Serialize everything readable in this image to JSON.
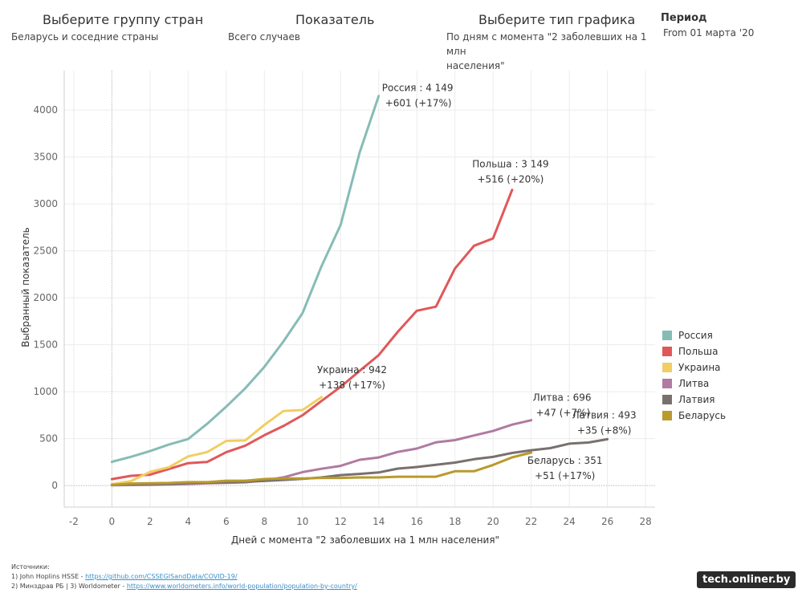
{
  "controls": {
    "group": {
      "title": "Выберите группу стран",
      "value": "Беларусь и соседние страны"
    },
    "indicator": {
      "title": "Показатель",
      "value": "Всего случаев"
    },
    "chart_type": {
      "title": "Выберите тип графика",
      "value_line1": "По дням с момента \"2 заболевших на 1 млн",
      "value_line2": "населения\""
    },
    "period": {
      "title": "Период",
      "value": "From 01 марта '20"
    }
  },
  "sources": {
    "heading": "Источники:",
    "line1_prefix": "1) John Hoplins HSSE - ",
    "line1_link": "https://github.com/CSSEGISandData/COVID-19/",
    "line2_prefix": "2) Минздрав РБ  |  3) Worldometer - ",
    "line2_link": "https://www.worldometers.info/world-population/population-by-country/"
  },
  "watermark": "tech.onliner.by",
  "chart_data": {
    "type": "line",
    "xlabel": "Дней с момента \"2 заболевших на 1 млн населения\"",
    "ylabel": "Выбранный показатель",
    "xlim": [
      -2.5,
      28.5
    ],
    "ylim": [
      -230,
      4420
    ],
    "xticks": [
      -2,
      0,
      2,
      4,
      6,
      8,
      10,
      12,
      14,
      16,
      18,
      20,
      22,
      24,
      26,
      28
    ],
    "yticks": [
      0,
      500,
      1000,
      1500,
      2000,
      2500,
      3000,
      3500,
      4000
    ],
    "grid": true,
    "legend_position": "right",
    "series": [
      {
        "name": "Россия",
        "color": "#86bcb6",
        "x": [
          0,
          1,
          2,
          3,
          4,
          5,
          6,
          7,
          8,
          9,
          10,
          11,
          12,
          13,
          14
        ],
        "y": [
          253,
          306,
          367,
          438,
          495,
          658,
          840,
          1036,
          1264,
          1534,
          1836,
          2337,
          2777,
          3548,
          4149
        ],
        "label_line1": "Россия : 4 149",
        "label_line2": "+601 (+17%)"
      },
      {
        "name": "Польша",
        "color": "#e15759",
        "x": [
          0,
          1,
          2,
          3,
          4,
          5,
          6,
          7,
          8,
          9,
          10,
          11,
          12,
          13,
          14,
          15,
          16,
          17,
          18,
          19,
          20,
          21
        ],
        "y": [
          68,
          103,
          115,
          177,
          238,
          251,
          355,
          425,
          536,
          634,
          749,
          901,
          1051,
          1221,
          1389,
          1638,
          1862,
          1905,
          2311,
          2554,
          2633,
          3149
        ],
        "label_line1": "Польша : 3 149",
        "label_line2": "+516 (+20%)"
      },
      {
        "name": "Украина",
        "color": "#f1ce63",
        "x": [
          0,
          1,
          2,
          3,
          4,
          5,
          6,
          7,
          8,
          9,
          10,
          11
        ],
        "y": [
          14,
          47,
          145,
          196,
          310,
          356,
          475,
          480,
          645,
          794,
          804,
          942
        ],
        "label_line1": "Украина : 942",
        "label_line2": "+138 (+17%)"
      },
      {
        "name": "Литва",
        "color": "#b07aa1",
        "x": [
          0,
          1,
          2,
          3,
          4,
          5,
          6,
          7,
          8,
          9,
          10,
          11,
          12,
          13,
          14,
          15,
          16,
          17,
          18,
          19,
          20,
          21,
          22
        ],
        "y": [
          3,
          6,
          8,
          12,
          17,
          25,
          28,
          34,
          54,
          87,
          143,
          179,
          209,
          274,
          299,
          358,
          394,
          460,
          484,
          533,
          581,
          649,
          696
        ],
        "label_line1": "Литва : 696",
        "label_line2": "+47 (+7%)"
      },
      {
        "name": "Латвия",
        "color": "#79706e",
        "x": [
          0,
          1,
          2,
          3,
          4,
          5,
          6,
          7,
          8,
          9,
          10,
          11,
          12,
          13,
          14,
          15,
          16,
          17,
          18,
          19,
          20,
          21,
          22,
          23,
          24,
          25,
          26
        ],
        "y": [
          6,
          10,
          16,
          17,
          26,
          30,
          34,
          40,
          49,
          60,
          71,
          86,
          111,
          124,
          139,
          180,
          197,
          221,
          244,
          280,
          305,
          347,
          376,
          398,
          446,
          458,
          493
        ],
        "label_line1": "Латвия : 493",
        "label_line2": "+35 (+8%)"
      },
      {
        "name": "Беларусь",
        "color": "#b99a2c",
        "x": [
          0,
          1,
          2,
          3,
          4,
          5,
          6,
          7,
          8,
          9,
          10,
          11,
          12,
          13,
          14,
          15,
          16,
          17,
          18,
          19,
          20,
          21,
          22
        ],
        "y": [
          6,
          21,
          25,
          27,
          36,
          36,
          51,
          51,
          69,
          76,
          76,
          81,
          81,
          86,
          86,
          94,
          94,
          94,
          152,
          152,
          220,
          300,
          351
        ],
        "label_line1": "Беларусь : 351",
        "label_line2": "+51 (+17%)"
      }
    ]
  }
}
